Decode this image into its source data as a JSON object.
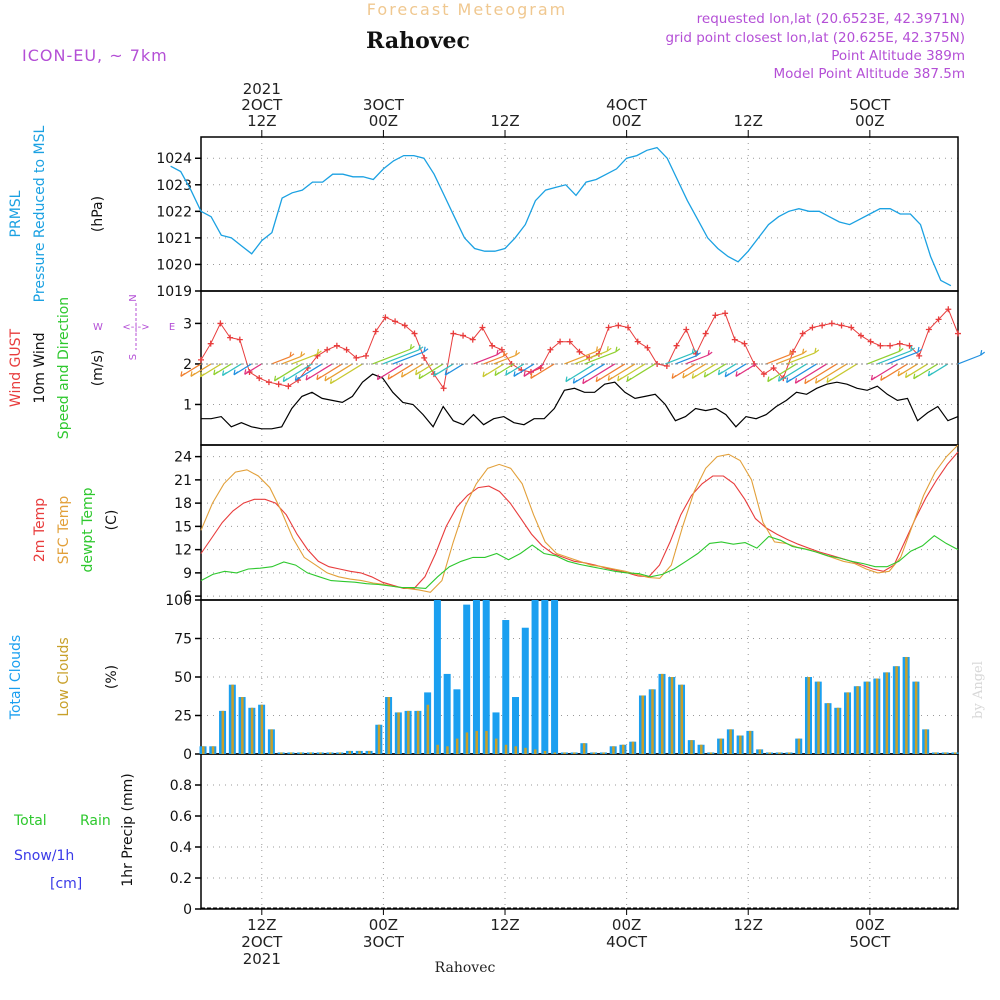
{
  "header": {
    "super_title": "Forecast Meteogram",
    "location": "Rahovec",
    "model": "ICON-EU, ~ 7km",
    "requested": "requested lon,lat (20.6523E, 42.3971N)",
    "grid_point": "grid point closest lon,lat (20.625E, 42.375N)",
    "point_altitude": "Point Altitude 389m",
    "model_altitude": "Model Point Altitude 387.5m",
    "footer_location": "Rahovec",
    "credit": "by Angel"
  },
  "time_axis": {
    "top": [
      {
        "t": 12,
        "lines": [
          "2021",
          "2OCT",
          "12Z"
        ]
      },
      {
        "t": 24,
        "lines": [
          "3OCT",
          "00Z"
        ]
      },
      {
        "t": 36,
        "lines": [
          "12Z"
        ]
      },
      {
        "t": 48,
        "lines": [
          "4OCT",
          "00Z"
        ]
      },
      {
        "t": 60,
        "lines": [
          "12Z"
        ]
      },
      {
        "t": 72,
        "lines": [
          "5OCT",
          "00Z"
        ]
      }
    ],
    "bottom": [
      {
        "t": 12,
        "lines": [
          "12Z",
          "2OCT",
          "2021"
        ]
      },
      {
        "t": 24,
        "lines": [
          "00Z",
          "3OCT"
        ]
      },
      {
        "t": 36,
        "lines": [
          "12Z"
        ]
      },
      {
        "t": 48,
        "lines": [
          "00Z",
          "4OCT"
        ]
      },
      {
        "t": 60,
        "lines": [
          "12Z"
        ]
      },
      {
        "t": 72,
        "lines": [
          "00Z",
          "5OCT"
        ]
      }
    ]
  },
  "labels": {
    "pressure": {
      "l1": "PRMSL",
      "l2": "Pressure Reduced to MSL",
      "unit": "(hPa)"
    },
    "wind": {
      "gust": "Wind GUST",
      "wind10": "10m Wind",
      "dir": "Speed and Direction",
      "unit": "(m/s)",
      "compass": {
        "n": "N",
        "s": "S",
        "w": "W",
        "e": "E"
      }
    },
    "temp": {
      "t2m": "2m Temp",
      "sfc": "SFC Temp",
      "dew": "dewpt Temp",
      "unit": "(C)"
    },
    "clouds": {
      "total": "Total Clouds",
      "low": "Low Clouds",
      "unit": "(%)"
    },
    "precip": {
      "total": "Total",
      "rain": "Rain",
      "snow": "Snow/1h",
      "cm": "[cm]",
      "unit": "1hr Precip (mm)"
    }
  },
  "colors": {
    "pressure": "#1ba1e2",
    "gust": "#e83c3c",
    "wind": "#000000",
    "t2m": "#e83c3c",
    "sfc": "#e2a03a",
    "dew": "#2ec82e",
    "total_cloud": "#1a9ff0",
    "low_cloud": "#c8a02a",
    "rain": "#2ec82e",
    "snow": "#3a3ae8",
    "meta": "#b44fd6",
    "supertitle": "#f0c890"
  },
  "chart_data": [
    {
      "type": "line",
      "name": "Pressure",
      "x_range_hours": [
        3,
        80
      ],
      "ylim": [
        1019,
        1024.8
      ],
      "yticks": [
        1019,
        1020,
        1021,
        1022,
        1023,
        1024
      ],
      "series": [
        {
          "name": "PRMSL",
          "x": [
            3,
            4,
            5,
            6,
            7,
            8,
            9,
            10,
            11,
            12,
            13,
            14,
            15,
            16,
            17,
            18,
            19,
            20,
            21,
            22,
            23,
            24,
            25,
            26,
            27,
            28,
            29,
            30,
            31,
            32,
            33,
            34,
            35,
            36,
            37,
            38,
            39,
            40,
            41,
            42,
            43,
            44,
            45,
            46,
            47,
            48,
            49,
            50,
            51,
            52,
            53,
            54,
            55,
            56,
            57,
            58,
            59,
            60,
            61,
            62,
            63,
            64,
            65,
            66,
            67,
            68,
            69,
            70,
            71,
            72,
            73,
            74,
            75,
            76,
            77,
            78,
            79,
            80
          ],
          "values": [
            1023.7,
            1023.5,
            1022.8,
            1022.0,
            1021.8,
            1021.1,
            1021.0,
            1020.7,
            1020.4,
            1020.9,
            1021.2,
            1022.5,
            1022.7,
            1022.8,
            1023.1,
            1023.1,
            1023.4,
            1023.4,
            1023.3,
            1023.3,
            1023.2,
            1023.6,
            1023.9,
            1024.1,
            1024.1,
            1024.0,
            1023.4,
            1022.6,
            1021.8,
            1021.0,
            1020.6,
            1020.5,
            1020.5,
            1020.6,
            1021.0,
            1021.5,
            1022.4,
            1022.8,
            1022.9,
            1023.0,
            1022.6,
            1023.1,
            1023.2,
            1023.4,
            1023.6,
            1024.0,
            1024.1,
            1024.3,
            1024.4,
            1024.0,
            1023.2,
            1022.4,
            1021.7,
            1021.0,
            1020.6,
            1020.3,
            1020.1,
            1020.5,
            1021.0,
            1021.5,
            1021.8,
            1022.0,
            1022.1,
            1022.0,
            1022.0,
            1021.8,
            1021.6,
            1021.5,
            1021.7,
            1021.9,
            1022.1,
            1022.1,
            1021.9,
            1021.9,
            1021.5,
            1020.3,
            1019.4,
            1019.1
          ]
        }
      ]
    },
    {
      "type": "line",
      "name": "Wind",
      "ylim": [
        0,
        3.8
      ],
      "yticks": [
        1,
        2,
        3
      ],
      "series": [
        {
          "name": "Wind GUST",
          "values": [
            2.1,
            2.5,
            3.0,
            2.65,
            2.6,
            1.8,
            1.65,
            1.55,
            1.5,
            1.45,
            1.6,
            1.9,
            2.2,
            2.35,
            2.45,
            2.35,
            2.15,
            2.2,
            2.8,
            3.15,
            3.05,
            2.95,
            2.75,
            2.15,
            1.75,
            1.4,
            2.75,
            2.7,
            2.6,
            2.9,
            2.45,
            2.35,
            2.0,
            1.85,
            1.8,
            1.9,
            2.35,
            2.55,
            2.55,
            2.3,
            2.15,
            2.25,
            2.9,
            2.95,
            2.9,
            2.55,
            2.4,
            2.0,
            1.95,
            2.45,
            2.85,
            2.25,
            2.75,
            3.2,
            3.25,
            2.6,
            2.5,
            2.0,
            1.75,
            1.9,
            1.65,
            2.3,
            2.75,
            2.9,
            2.95,
            3.0,
            2.95,
            2.9,
            2.7,
            2.55,
            2.45,
            2.45,
            2.5,
            2.45,
            2.2,
            2.85,
            3.1,
            3.35,
            2.75
          ]
        },
        {
          "name": "10m Wind",
          "values": [
            0.65,
            0.65,
            0.7,
            0.45,
            0.55,
            0.45,
            0.4,
            0.4,
            0.45,
            0.9,
            1.2,
            1.3,
            1.15,
            1.1,
            1.05,
            1.2,
            1.55,
            1.75,
            1.65,
            1.3,
            1.05,
            1.0,
            0.75,
            0.45,
            0.95,
            0.6,
            0.5,
            0.75,
            0.5,
            0.65,
            0.7,
            0.55,
            0.5,
            0.65,
            0.65,
            0.9,
            1.35,
            1.4,
            1.3,
            1.3,
            1.5,
            1.55,
            1.3,
            1.15,
            1.2,
            1.25,
            1.0,
            0.6,
            0.7,
            0.9,
            0.85,
            0.9,
            0.75,
            0.45,
            0.7,
            0.65,
            0.75,
            0.95,
            1.1,
            1.3,
            1.25,
            1.4,
            1.5,
            1.55,
            1.5,
            1.4,
            1.35,
            1.45,
            1.25,
            1.1,
            1.15,
            0.6,
            0.8,
            0.95,
            0.6,
            0.7
          ]
        }
      ]
    },
    {
      "type": "line",
      "name": "Temperature",
      "ylim": [
        5.5,
        25.5
      ],
      "yticks": [
        6,
        9,
        12,
        15,
        18,
        21,
        24
      ],
      "series": [
        {
          "name": "2m Temp",
          "values": [
            11.5,
            13.5,
            15.5,
            17,
            18,
            18.5,
            18.5,
            18,
            16.5,
            14,
            12,
            10.5,
            9.8,
            9.5,
            9.2,
            9,
            8.5,
            7.8,
            7.4,
            7,
            7,
            8.5,
            11.5,
            15,
            17.5,
            19,
            20,
            20.2,
            19.5,
            18,
            16,
            14,
            12.5,
            11.5,
            11,
            10.5,
            10.3,
            10,
            9.6,
            9.3,
            9,
            8.6,
            8.5,
            10,
            13,
            16.5,
            19,
            20.5,
            21.5,
            21.5,
            20.5,
            18.5,
            16,
            14.8,
            14,
            13.3,
            12.7,
            12.2,
            11.7,
            11.3,
            10.9,
            10.5,
            10,
            9.5,
            9.2,
            10,
            13,
            16,
            18.7,
            21,
            23,
            24.6
          ]
        },
        {
          "name": "SFC Temp",
          "values": [
            14.5,
            18,
            20.5,
            22,
            22.3,
            21.5,
            20,
            17,
            13.5,
            11,
            10,
            9,
            8.5,
            8.2,
            8,
            7.7,
            7.5,
            7.2,
            7,
            6.8,
            6.5,
            8,
            13,
            17.5,
            20.5,
            22.5,
            23,
            22.5,
            20.5,
            16.5,
            13,
            11.5,
            11,
            10.5,
            10,
            9.8,
            9.5,
            9.2,
            8.8,
            8.4,
            8.3,
            10,
            15,
            19.5,
            22.5,
            24,
            24.3,
            23.5,
            21,
            15.5,
            13,
            12.8,
            12.3,
            12,
            11.5,
            11,
            10.5,
            10.2,
            9.5,
            9,
            9.2,
            11,
            15,
            19,
            22,
            24,
            25.5
          ]
        },
        {
          "name": "dewpt Temp",
          "values": [
            8,
            8.8,
            9.2,
            9,
            9.5,
            9.6,
            9.8,
            10.4,
            10,
            9,
            8.5,
            8,
            7.9,
            7.8,
            7.6,
            7.5,
            7.3,
            7.1,
            7.1,
            7.0,
            8.5,
            9.8,
            10.5,
            11,
            11,
            11.5,
            10.7,
            11.5,
            12.6,
            11.5,
            11.2,
            10.5,
            10.1,
            9.8,
            9.5,
            9.2,
            9,
            8.9,
            8.5,
            8.8,
            9.5,
            10.5,
            11.5,
            12.8,
            13,
            12.7,
            12.9,
            12.2,
            13.7,
            13.2,
            12.4,
            12.1,
            11.7,
            11.2,
            10.9,
            10.5,
            10.2,
            9.8,
            9.8,
            10.5,
            11.8,
            12.5,
            13.8,
            12.8,
            12
          ]
        }
      ]
    },
    {
      "type": "bar",
      "name": "Clouds",
      "ylim": [
        0,
        100
      ],
      "yticks": [
        0,
        25,
        50,
        75,
        100
      ],
      "series": [
        {
          "name": "Total Clouds",
          "values": [
            5,
            5,
            28,
            45,
            37,
            30,
            32,
            16,
            1,
            1,
            1,
            1,
            1,
            1,
            1,
            2,
            2,
            2,
            19,
            37,
            27,
            28,
            28,
            40,
            100,
            52,
            42,
            97,
            100,
            100,
            27,
            87,
            37,
            82,
            100,
            100,
            100,
            1,
            1,
            7,
            1,
            1,
            5,
            6,
            8,
            38,
            42,
            52,
            50,
            45,
            9,
            6,
            1,
            10,
            16,
            12,
            15,
            3,
            1,
            1,
            1,
            10,
            50,
            47,
            33,
            30,
            40,
            44,
            47,
            49,
            53,
            57,
            63,
            47,
            16,
            1,
            1,
            1
          ]
        },
        {
          "name": "Low Clouds",
          "values": [
            5,
            5,
            28,
            45,
            37,
            30,
            32,
            16,
            1,
            1,
            1,
            1,
            1,
            1,
            1,
            2,
            2,
            2,
            19,
            37,
            27,
            28,
            28,
            32,
            6,
            5,
            10,
            14,
            15,
            15,
            10,
            6,
            5,
            4,
            3,
            2,
            1,
            1,
            1,
            7,
            1,
            1,
            5,
            6,
            8,
            38,
            42,
            52,
            50,
            45,
            9,
            6,
            1,
            10,
            16,
            12,
            15,
            3,
            1,
            1,
            1,
            10,
            50,
            47,
            33,
            30,
            40,
            44,
            47,
            49,
            53,
            57,
            63,
            47,
            16,
            1,
            1,
            1
          ]
        }
      ]
    },
    {
      "type": "line",
      "name": "Precipitation",
      "ylim": [
        0,
        1.0
      ],
      "yticks": [
        0,
        0.2,
        0.4,
        0.6,
        0.8
      ],
      "series": [
        {
          "name": "Total Rain",
          "values": []
        },
        {
          "name": "Snow/1h",
          "values": []
        }
      ]
    }
  ]
}
